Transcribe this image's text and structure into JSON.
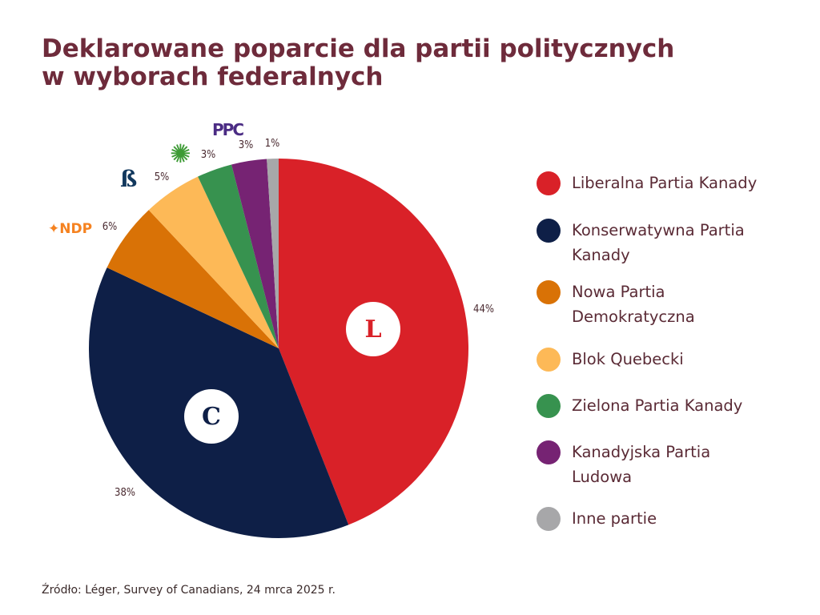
{
  "title": {
    "line1": "Deklarowane poparcie dla partii politycznych",
    "line2": "w wyborach federalnych"
  },
  "chart_data": {
    "type": "pie",
    "title": "Deklarowane poparcie dla partii politycznych w wyborach federalnych",
    "start": "top",
    "direction": "clockwise",
    "categories": [
      "Liberalna Partia Kanady",
      "Konserwatywna Partia Kanady",
      "Nowa Partia Demokratyczna",
      "Blok Quebecki",
      "Zielona Partia Kanady",
      "Kanadyjska Partia Ludowa",
      "Inne partie"
    ],
    "values": [
      44,
      38,
      6,
      5,
      3,
      3,
      1
    ],
    "labels": [
      "44%",
      "38%",
      "6%",
      "5%",
      "3%",
      "3%",
      "1%"
    ],
    "colors": [
      "#d92128",
      "#0e1f47",
      "#d97206",
      "#fdb957",
      "#37924f",
      "#762373",
      "#a7a7a9"
    ],
    "legend": "right"
  },
  "logos": {
    "ndp": "NDP",
    "ppc": "PPC",
    "liberal": "L",
    "conservative": "C"
  },
  "source": "Źródło: Léger, Survey of Canadians, 24 mrca 2025 r."
}
